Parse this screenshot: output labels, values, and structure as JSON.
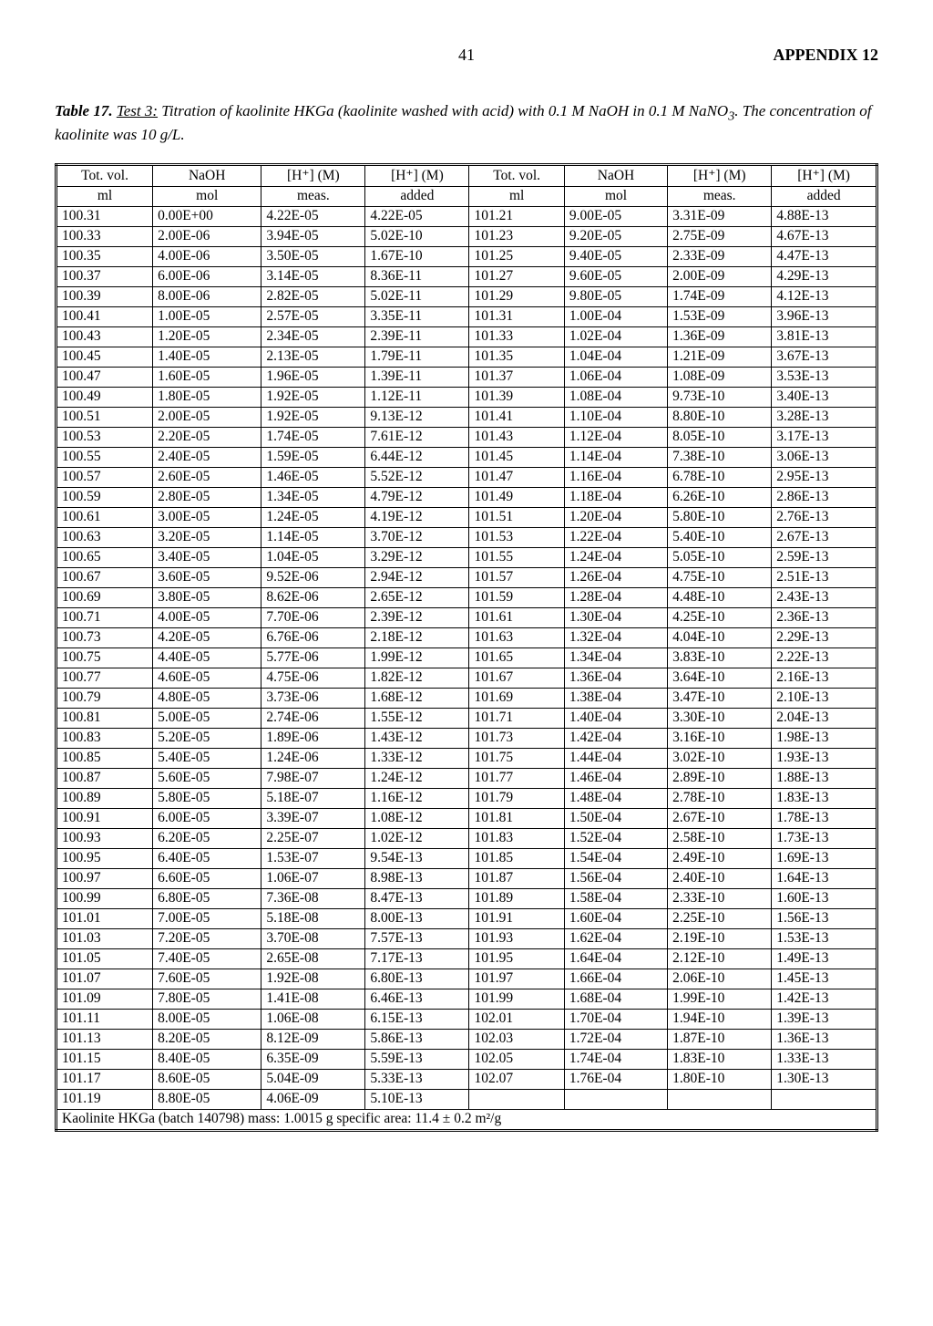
{
  "header": {
    "page_number": "41",
    "appendix": "APPENDIX 12"
  },
  "caption": {
    "table_label": "Table 17.",
    "test_label": "Test 3:",
    "text1": " Titration of kaolinite HKGa (kaolinite washed with acid) with 0.1 M NaOH in 0.1 M NaNO",
    "sub": "3",
    "text2": ". The concentration of kaolinite was 10 g/L."
  },
  "table": {
    "header_row1": [
      "Tot. vol.",
      "NaOH",
      "[H⁺] (M)",
      "[H⁺] (M)",
      "Tot. vol.",
      "NaOH",
      "[H⁺] (M)",
      "[H⁺] (M)"
    ],
    "header_row2": [
      "ml",
      "mol",
      "meas.",
      "added",
      "ml",
      "mol",
      "meas.",
      "added"
    ],
    "rows": [
      [
        "100.31",
        "0.00E+00",
        "4.22E-05",
        "4.22E-05",
        "101.21",
        "9.00E-05",
        "3.31E-09",
        "4.88E-13"
      ],
      [
        "100.33",
        "2.00E-06",
        "3.94E-05",
        "5.02E-10",
        "101.23",
        "9.20E-05",
        "2.75E-09",
        "4.67E-13"
      ],
      [
        "100.35",
        "4.00E-06",
        "3.50E-05",
        "1.67E-10",
        "101.25",
        "9.40E-05",
        "2.33E-09",
        "4.47E-13"
      ],
      [
        "100.37",
        "6.00E-06",
        "3.14E-05",
        "8.36E-11",
        "101.27",
        "9.60E-05",
        "2.00E-09",
        "4.29E-13"
      ],
      [
        "100.39",
        "8.00E-06",
        "2.82E-05",
        "5.02E-11",
        "101.29",
        "9.80E-05",
        "1.74E-09",
        "4.12E-13"
      ],
      [
        "100.41",
        "1.00E-05",
        "2.57E-05",
        "3.35E-11",
        "101.31",
        "1.00E-04",
        "1.53E-09",
        "3.96E-13"
      ],
      [
        "100.43",
        "1.20E-05",
        "2.34E-05",
        "2.39E-11",
        "101.33",
        "1.02E-04",
        "1.36E-09",
        "3.81E-13"
      ],
      [
        "100.45",
        "1.40E-05",
        "2.13E-05",
        "1.79E-11",
        "101.35",
        "1.04E-04",
        "1.21E-09",
        "3.67E-13"
      ],
      [
        "100.47",
        "1.60E-05",
        "1.96E-05",
        "1.39E-11",
        "101.37",
        "1.06E-04",
        "1.08E-09",
        "3.53E-13"
      ],
      [
        "100.49",
        "1.80E-05",
        "1.92E-05",
        "1.12E-11",
        "101.39",
        "1.08E-04",
        "9.73E-10",
        "3.40E-13"
      ],
      [
        "100.51",
        "2.00E-05",
        "1.92E-05",
        "9.13E-12",
        "101.41",
        "1.10E-04",
        "8.80E-10",
        "3.28E-13"
      ],
      [
        "100.53",
        "2.20E-05",
        "1.74E-05",
        "7.61E-12",
        "101.43",
        "1.12E-04",
        "8.05E-10",
        "3.17E-13"
      ],
      [
        "100.55",
        "2.40E-05",
        "1.59E-05",
        "6.44E-12",
        "101.45",
        "1.14E-04",
        "7.38E-10",
        "3.06E-13"
      ],
      [
        "100.57",
        "2.60E-05",
        "1.46E-05",
        "5.52E-12",
        "101.47",
        "1.16E-04",
        "6.78E-10",
        "2.95E-13"
      ],
      [
        "100.59",
        "2.80E-05",
        "1.34E-05",
        "4.79E-12",
        "101.49",
        "1.18E-04",
        "6.26E-10",
        "2.86E-13"
      ],
      [
        "100.61",
        "3.00E-05",
        "1.24E-05",
        "4.19E-12",
        "101.51",
        "1.20E-04",
        "5.80E-10",
        "2.76E-13"
      ],
      [
        "100.63",
        "3.20E-05",
        "1.14E-05",
        "3.70E-12",
        "101.53",
        "1.22E-04",
        "5.40E-10",
        "2.67E-13"
      ],
      [
        "100.65",
        "3.40E-05",
        "1.04E-05",
        "3.29E-12",
        "101.55",
        "1.24E-04",
        "5.05E-10",
        "2.59E-13"
      ],
      [
        "100.67",
        "3.60E-05",
        "9.52E-06",
        "2.94E-12",
        "101.57",
        "1.26E-04",
        "4.75E-10",
        "2.51E-13"
      ],
      [
        "100.69",
        "3.80E-05",
        "8.62E-06",
        "2.65E-12",
        "101.59",
        "1.28E-04",
        "4.48E-10",
        "2.43E-13"
      ],
      [
        "100.71",
        "4.00E-05",
        "7.70E-06",
        "2.39E-12",
        "101.61",
        "1.30E-04",
        "4.25E-10",
        "2.36E-13"
      ],
      [
        "100.73",
        "4.20E-05",
        "6.76E-06",
        "2.18E-12",
        "101.63",
        "1.32E-04",
        "4.04E-10",
        "2.29E-13"
      ],
      [
        "100.75",
        "4.40E-05",
        "5.77E-06",
        "1.99E-12",
        "101.65",
        "1.34E-04",
        "3.83E-10",
        "2.22E-13"
      ],
      [
        "100.77",
        "4.60E-05",
        "4.75E-06",
        "1.82E-12",
        "101.67",
        "1.36E-04",
        "3.64E-10",
        "2.16E-13"
      ],
      [
        "100.79",
        "4.80E-05",
        "3.73E-06",
        "1.68E-12",
        "101.69",
        "1.38E-04",
        "3.47E-10",
        "2.10E-13"
      ],
      [
        "100.81",
        "5.00E-05",
        "2.74E-06",
        "1.55E-12",
        "101.71",
        "1.40E-04",
        "3.30E-10",
        "2.04E-13"
      ],
      [
        "100.83",
        "5.20E-05",
        "1.89E-06",
        "1.43E-12",
        "101.73",
        "1.42E-04",
        "3.16E-10",
        "1.98E-13"
      ],
      [
        "100.85",
        "5.40E-05",
        "1.24E-06",
        "1.33E-12",
        "101.75",
        "1.44E-04",
        "3.02E-10",
        "1.93E-13"
      ],
      [
        "100.87",
        "5.60E-05",
        "7.98E-07",
        "1.24E-12",
        "101.77",
        "1.46E-04",
        "2.89E-10",
        "1.88E-13"
      ],
      [
        "100.89",
        "5.80E-05",
        "5.18E-07",
        "1.16E-12",
        "101.79",
        "1.48E-04",
        "2.78E-10",
        "1.83E-13"
      ],
      [
        "100.91",
        "6.00E-05",
        "3.39E-07",
        "1.08E-12",
        "101.81",
        "1.50E-04",
        "2.67E-10",
        "1.78E-13"
      ],
      [
        "100.93",
        "6.20E-05",
        "2.25E-07",
        "1.02E-12",
        "101.83",
        "1.52E-04",
        "2.58E-10",
        "1.73E-13"
      ],
      [
        "100.95",
        "6.40E-05",
        "1.53E-07",
        "9.54E-13",
        "101.85",
        "1.54E-04",
        "2.49E-10",
        "1.69E-13"
      ],
      [
        "100.97",
        "6.60E-05",
        "1.06E-07",
        "8.98E-13",
        "101.87",
        "1.56E-04",
        "2.40E-10",
        "1.64E-13"
      ],
      [
        "100.99",
        "6.80E-05",
        "7.36E-08",
        "8.47E-13",
        "101.89",
        "1.58E-04",
        "2.33E-10",
        "1.60E-13"
      ],
      [
        "101.01",
        "7.00E-05",
        "5.18E-08",
        "8.00E-13",
        "101.91",
        "1.60E-04",
        "2.25E-10",
        "1.56E-13"
      ],
      [
        "101.03",
        "7.20E-05",
        "3.70E-08",
        "7.57E-13",
        "101.93",
        "1.62E-04",
        "2.19E-10",
        "1.53E-13"
      ],
      [
        "101.05",
        "7.40E-05",
        "2.65E-08",
        "7.17E-13",
        "101.95",
        "1.64E-04",
        "2.12E-10",
        "1.49E-13"
      ],
      [
        "101.07",
        "7.60E-05",
        "1.92E-08",
        "6.80E-13",
        "101.97",
        "1.66E-04",
        "2.06E-10",
        "1.45E-13"
      ],
      [
        "101.09",
        "7.80E-05",
        "1.41E-08",
        "6.46E-13",
        "101.99",
        "1.68E-04",
        "1.99E-10",
        "1.42E-13"
      ],
      [
        "101.11",
        "8.00E-05",
        "1.06E-08",
        "6.15E-13",
        "102.01",
        "1.70E-04",
        "1.94E-10",
        "1.39E-13"
      ],
      [
        "101.13",
        "8.20E-05",
        "8.12E-09",
        "5.86E-13",
        "102.03",
        "1.72E-04",
        "1.87E-10",
        "1.36E-13"
      ],
      [
        "101.15",
        "8.40E-05",
        "6.35E-09",
        "5.59E-13",
        "102.05",
        "1.74E-04",
        "1.83E-10",
        "1.33E-13"
      ],
      [
        "101.17",
        "8.60E-05",
        "5.04E-09",
        "5.33E-13",
        "102.07",
        "1.76E-04",
        "1.80E-10",
        "1.30E-13"
      ],
      [
        "101.19",
        "8.80E-05",
        "4.06E-09",
        "5.10E-13",
        "",
        "",
        "",
        ""
      ]
    ],
    "footer": "Kaolinite HKGa (batch 140798)     mass: 1.0015 g     specific area: 11.4 ± 0.2 m²/g"
  }
}
